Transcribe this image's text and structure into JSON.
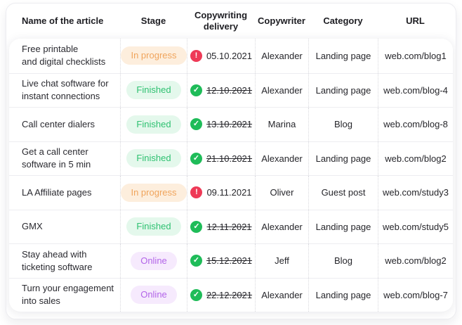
{
  "table": {
    "columns": [
      {
        "label": "Name of the article"
      },
      {
        "label": "Stage"
      },
      {
        "label": "Copywriting\ndelivery"
      },
      {
        "label": "Copywriter"
      },
      {
        "label": "Category"
      },
      {
        "label": "URL"
      }
    ],
    "rows": [
      {
        "name": "Free printable\nand digital checklists",
        "stage": {
          "label": "In progress",
          "key": "in-progress"
        },
        "delivery": {
          "date": "05.10.2021",
          "status": "overdue",
          "struck": false
        },
        "copywriter": "Alexander",
        "category": "Landing page",
        "url": "web.com/blog1"
      },
      {
        "name": "Live chat software for\ninstant connections",
        "stage": {
          "label": "Finished",
          "key": "finished"
        },
        "delivery": {
          "date": "12.10.2021",
          "status": "done",
          "struck": true
        },
        "copywriter": "Alexander",
        "category": "Landing page",
        "url": "web.com/blog-4"
      },
      {
        "name": "Call center dialers",
        "stage": {
          "label": "Finished",
          "key": "finished"
        },
        "delivery": {
          "date": "13.10.2021",
          "status": "done",
          "struck": true
        },
        "copywriter": "Marina",
        "category": "Blog",
        "url": "web.com/blog-8"
      },
      {
        "name": "Get a call center\nsoftware in 5 min",
        "stage": {
          "label": "Finished",
          "key": "finished"
        },
        "delivery": {
          "date": "21.10.2021",
          "status": "done",
          "struck": true
        },
        "copywriter": "Alexander",
        "category": "Landing page",
        "url": "web.com/blog2"
      },
      {
        "name": "LA Affiliate pages",
        "stage": {
          "label": "In progress",
          "key": "in-progress"
        },
        "delivery": {
          "date": "09.11.2021",
          "status": "overdue",
          "struck": false
        },
        "copywriter": "Oliver",
        "category": "Guest post",
        "url": "web.com/study3"
      },
      {
        "name": "GMX",
        "stage": {
          "label": "Finished",
          "key": "finished"
        },
        "delivery": {
          "date": "12.11.2021",
          "status": "done",
          "struck": true
        },
        "copywriter": "Alexander",
        "category": "Landing page",
        "url": "web.com/study5"
      },
      {
        "name": "Stay ahead with\nticketing software",
        "stage": {
          "label": "Online",
          "key": "online"
        },
        "delivery": {
          "date": "15.12.2021",
          "status": "done",
          "struck": true
        },
        "copywriter": "Jeff",
        "category": "Blog",
        "url": "web.com/blog2"
      },
      {
        "name": "Turn your engagement\ninto sales",
        "stage": {
          "label": "Online",
          "key": "online"
        },
        "delivery": {
          "date": "22.12.2021",
          "status": "done",
          "struck": true
        },
        "copywriter": "Alexander",
        "category": "Landing page",
        "url": "web.com/blog-7"
      }
    ]
  },
  "icons": {
    "alert-circle": {
      "glyph": "!",
      "color": "#ee3a57"
    },
    "check-circle": {
      "glyph": "✓",
      "color": "#1fbc59"
    }
  },
  "colors": {
    "stage_in_progress_bg": "#fdeedd",
    "stage_in_progress_text": "#f0a45c",
    "stage_finished_bg": "#e4f8ec",
    "stage_finished_text": "#2ec171",
    "stage_online_bg": "#f6eafd",
    "stage_online_text": "#b264e8",
    "overdue_icon": "#ee3a57",
    "done_icon": "#1fbc59",
    "row_divider": "#ededf1",
    "column_divider": "#d8d8dd"
  }
}
